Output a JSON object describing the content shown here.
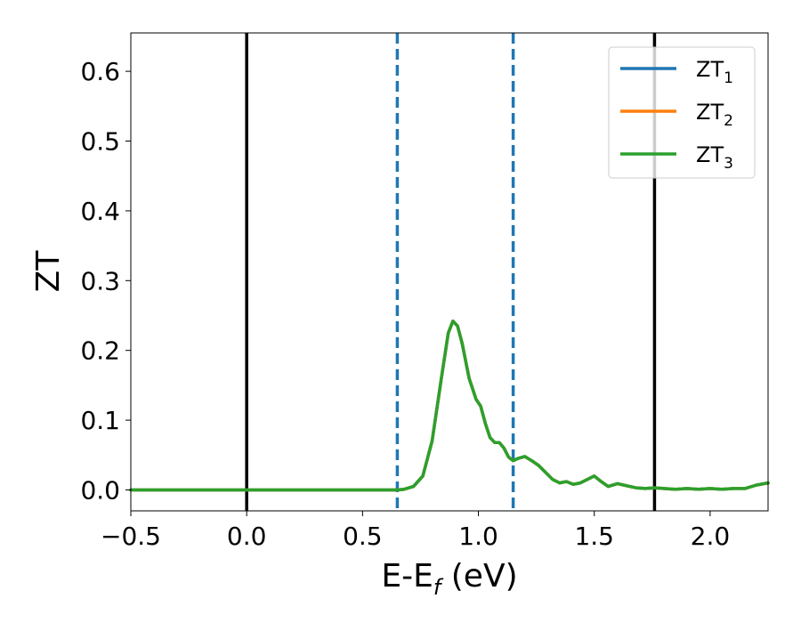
{
  "chart_data": {
    "type": "line",
    "title": "",
    "xlabel": "E-E",
    "xlabel_sub": "f",
    "xlabel_unit": " (eV)",
    "ylabel": "ZT",
    "xlim": [
      -0.5,
      2.25
    ],
    "ylim": [
      -0.03,
      0.655
    ],
    "xticks": [
      -0.5,
      0.0,
      0.5,
      1.0,
      1.5,
      2.0
    ],
    "xtick_labels": [
      "−0.5",
      "0.0",
      "0.5",
      "1.0",
      "1.5",
      "2.0"
    ],
    "yticks": [
      0.0,
      0.1,
      0.2,
      0.3,
      0.4,
      0.5,
      0.6
    ],
    "ytick_labels": [
      "0.0",
      "0.1",
      "0.2",
      "0.3",
      "0.4",
      "0.5",
      "0.6"
    ],
    "grid": false,
    "legend_position": "top-right",
    "vlines": [
      {
        "x": 0.0,
        "style": "solid",
        "color": "#000000"
      },
      {
        "x": 1.76,
        "style": "solid",
        "color": "#000000"
      },
      {
        "x": 0.65,
        "style": "dashed",
        "color": "#1f77b4"
      },
      {
        "x": 1.15,
        "style": "dashed",
        "color": "#1f77b4"
      }
    ],
    "x": [
      -0.5,
      0.0,
      0.5,
      0.6,
      0.65,
      0.68,
      0.72,
      0.76,
      0.8,
      0.84,
      0.87,
      0.89,
      0.91,
      0.93,
      0.96,
      0.99,
      1.01,
      1.03,
      1.05,
      1.07,
      1.09,
      1.11,
      1.13,
      1.15,
      1.17,
      1.2,
      1.23,
      1.26,
      1.29,
      1.32,
      1.35,
      1.38,
      1.41,
      1.44,
      1.47,
      1.5,
      1.53,
      1.56,
      1.6,
      1.64,
      1.68,
      1.72,
      1.76,
      1.8,
      1.85,
      1.9,
      1.95,
      2.0,
      2.05,
      2.1,
      2.15,
      2.2,
      2.25
    ],
    "series": [
      {
        "name": "ZT",
        "sub": "1",
        "color": "#1f77b4",
        "values": [
          0.0,
          0.0,
          0.0,
          0.0,
          0.0,
          0.001,
          0.005,
          0.02,
          0.07,
          0.16,
          0.225,
          0.242,
          0.235,
          0.21,
          0.16,
          0.13,
          0.12,
          0.095,
          0.075,
          0.068,
          0.068,
          0.06,
          0.047,
          0.042,
          0.045,
          0.048,
          0.042,
          0.035,
          0.025,
          0.015,
          0.01,
          0.012,
          0.008,
          0.01,
          0.015,
          0.02,
          0.012,
          0.005,
          0.009,
          0.006,
          0.003,
          0.002,
          0.003,
          0.002,
          0.001,
          0.002,
          0.001,
          0.002,
          0.001,
          0.002,
          0.002,
          0.007,
          0.01
        ]
      },
      {
        "name": "ZT",
        "sub": "2",
        "color": "#ff7f0e",
        "values": [
          0.0,
          0.0,
          0.0,
          0.0,
          0.0,
          0.001,
          0.005,
          0.02,
          0.07,
          0.16,
          0.225,
          0.242,
          0.235,
          0.21,
          0.16,
          0.13,
          0.12,
          0.095,
          0.075,
          0.068,
          0.068,
          0.06,
          0.047,
          0.042,
          0.045,
          0.048,
          0.042,
          0.035,
          0.025,
          0.015,
          0.01,
          0.012,
          0.008,
          0.01,
          0.015,
          0.02,
          0.012,
          0.005,
          0.009,
          0.006,
          0.003,
          0.002,
          0.003,
          0.002,
          0.001,
          0.002,
          0.001,
          0.002,
          0.001,
          0.002,
          0.002,
          0.007,
          0.01
        ]
      },
      {
        "name": "ZT",
        "sub": "3",
        "color": "#2ca02c",
        "values": [
          0.0,
          0.0,
          0.0,
          0.0,
          0.0,
          0.001,
          0.005,
          0.02,
          0.07,
          0.16,
          0.225,
          0.242,
          0.235,
          0.21,
          0.16,
          0.13,
          0.12,
          0.095,
          0.075,
          0.068,
          0.068,
          0.06,
          0.047,
          0.042,
          0.045,
          0.048,
          0.042,
          0.035,
          0.025,
          0.015,
          0.01,
          0.012,
          0.008,
          0.01,
          0.015,
          0.02,
          0.012,
          0.005,
          0.009,
          0.006,
          0.003,
          0.002,
          0.003,
          0.002,
          0.001,
          0.002,
          0.001,
          0.002,
          0.001,
          0.002,
          0.002,
          0.007,
          0.01
        ]
      }
    ]
  }
}
